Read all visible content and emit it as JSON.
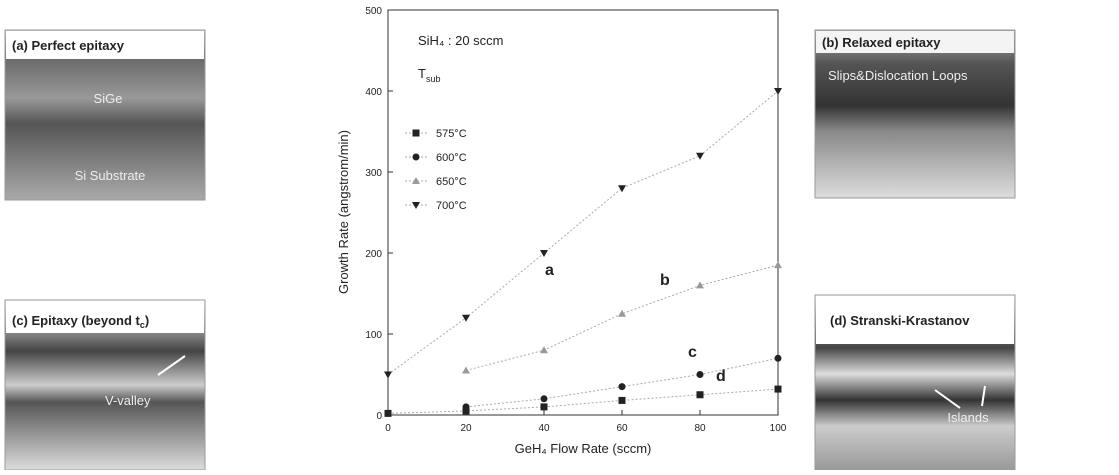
{
  "chart_data": {
    "type": "line",
    "x_label": "GeH₄ Flow Rate (sccm)",
    "y_label": "Growth Rate (angstrom/min)",
    "xlim": [
      0,
      100
    ],
    "xticks": [
      0,
      20,
      40,
      60,
      80,
      100
    ],
    "ylim": [
      0,
      500
    ],
    "yticks": [
      0,
      100,
      200,
      300,
      400,
      500
    ],
    "x": [
      0,
      20,
      40,
      60,
      80,
      100
    ],
    "series": [
      {
        "name": "575°C",
        "color": "#222",
        "marker": "square",
        "values": [
          2,
          5,
          10,
          18,
          25,
          32
        ]
      },
      {
        "name": "600°C",
        "color": "#222",
        "marker": "circle",
        "values": [
          null,
          10,
          20,
          35,
          50,
          70
        ]
      },
      {
        "name": "650°C",
        "color": "#999",
        "marker": "triangle",
        "values": [
          null,
          55,
          80,
          125,
          160,
          185
        ]
      },
      {
        "name": "700°C",
        "color": "#222",
        "marker": "triangle-down",
        "values": [
          50,
          120,
          200,
          280,
          320,
          400
        ]
      }
    ],
    "annotations": {
      "condition": "SiH₄ : 20 sccm",
      "legend_title": "T",
      "legend_title_sub": "sub",
      "letters": [
        "a",
        "b",
        "c",
        "d"
      ]
    }
  },
  "panels": [
    {
      "title": "(a) Perfect epitaxy",
      "labels": [
        "SiGe",
        "Si Substrate"
      ]
    },
    {
      "title": "(b) Relaxed epitaxy",
      "labels": [
        "Slips&Dislocation Loops"
      ]
    },
    {
      "title": "(c) Epitaxy (beyond t",
      "title_sub": "c",
      "title_tail": ")",
      "labels": [
        "V-valley"
      ]
    },
    {
      "title": "(d) Stranski-Krastanov",
      "labels": [
        "Islands"
      ]
    }
  ]
}
